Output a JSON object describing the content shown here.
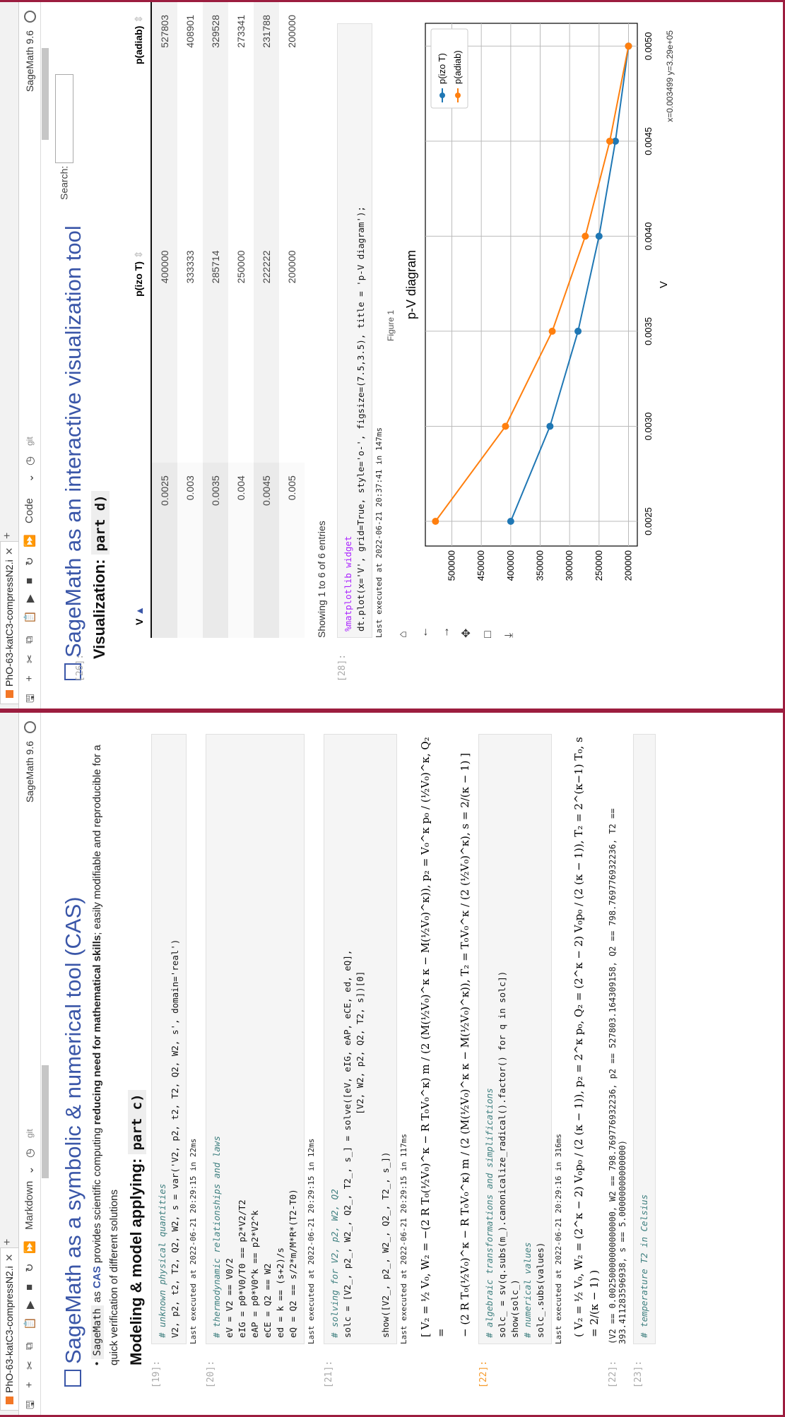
{
  "left": {
    "tab": "PhO-63-katC3-compressN2.i",
    "cell_type": "Markdown",
    "git": "git",
    "kernel": "SageMath 9.6",
    "title": "SageMath as a symbolic & numerical tool (CAS)",
    "bullet_parts": [
      "SageMath",
      " as ",
      "CAS",
      " provides scientific computing ",
      "reducing need for mathematical skills",
      "; easily modifiable and reproducible for a quick verification of different solutions"
    ],
    "subheading": "Modeling & model applying:",
    "subheading_code": "part c)",
    "cells": [
      {
        "prompt": "[19]:",
        "lines": [
          "# unknown physical quantities",
          "V2, p2, t2, T2, Q2, W2, s = var('V2, p2, t2, T2, Q2, W2, s', domain='real')"
        ],
        "exec": "Last executed at 2022-06-21 20:29:15 in 22ms"
      },
      {
        "prompt": "[20]:",
        "lines": [
          "# thermodynamic relationships and laws",
          "eV = V2 == V0/2",
          "eIG = p0*V0/T0 == p2*V2/T2",
          "eAP = p0*V0^k == p2*V2^k",
          "eCE = Q2 == W2",
          "ed = k == (s+2)/s",
          "eQ = Q2 == s/2*m/M*R*(T2-T0)"
        ],
        "exec": "Last executed at 2022-06-21 20:29:15 in 12ms"
      },
      {
        "prompt": "[21]:",
        "lines": [
          "# solving for V2, p2, W2, Q2",
          "solc = [V2_, p2_, W2_, Q2_, T2_, s_] = solve([eV, eIG, eAP, eCE, ed, eQ],",
          "                                          [V2, W2, p2, Q2, T2, s])[0]",
          "",
          "show([V2_, p2_, W2_, Q2_, T2_, s_])"
        ],
        "exec": "Last executed at 2022-06-21 20:29:15 in 117ms"
      },
      {
        "prompt": "[22]:",
        "lines": [
          "# algebraic transformations and simplifications",
          "solc_ = sv(q.subs(m_).canonicalize_radical().factor() for q in solc])",
          "show(solc_)",
          "# numerical values",
          "solc_.subs(values)"
        ],
        "exec": "Last executed at 2022-06-21 20:29:16 in 316ms"
      }
    ],
    "math21_a": "[ V₂ = ½ V₀, W₂ = −(2 R T₀(½V₀)^κ − R T₀V₀^κ) m / (2 (M(½V₀)^κ κ − M(½V₀)^κ)), p₂ = V₀^κ p₀ / (½V₀)^κ, Q₂ =",
    "math21_b": "− (2 R T₀(½V₀)^κ − R T₀V₀^κ) m / (2 (M(½V₀)^κ κ − M(½V₀)^κ)), T₂ = T₀V₀^κ / (2 (½V₀)^κ), s = 2/(κ − 1) ]",
    "math22": "( V₂ = ½ V₀, W₂ = (2^κ − 2) V₀p₀ / (2 (κ − 1)), p₂ = 2^κ p₀, Q₂ = (2^κ − 2) V₀p₀ / (2 (κ − 1)), T₂ = 2^(κ−1) T₀, s = 2/(κ − 1) )",
    "out22_prompt": "[22]:",
    "out22": "(V2 == 0.00250000000000000, W2 == 798.769776932236, p2 == 527803.164309158, Q2 == 798.769776932236, T2 == 393.411283596938, s == 5.00000000000000)",
    "cell23_prompt": "[23]:",
    "cell23": "# temperature T2 in Celsius"
  },
  "right": {
    "tab": "PhO-63-katC3-compressN2.i",
    "cell_type": "Code",
    "git": "git",
    "kernel": "SageMath 9.6",
    "prompt26": "[26]:",
    "title": "SageMath as an interactive visualization tool",
    "subheading": "Visualization:",
    "subheading_code": "part d)",
    "search_label": "Search:",
    "table": {
      "headers": [
        "V",
        "p(izo T)",
        "p(adiab)"
      ],
      "rows": [
        [
          "0.0025",
          "400000",
          "527803"
        ],
        [
          "0.003",
          "333333",
          "408901"
        ],
        [
          "0.0035",
          "285714",
          "329528"
        ],
        [
          "0.004",
          "250000",
          "273341"
        ],
        [
          "0.0045",
          "222222",
          "231788"
        ],
        [
          "0.005",
          "200000",
          "200000"
        ]
      ],
      "info": "Showing 1 to 6 of 6 entries"
    },
    "prompt28": "[28]:",
    "cell28_lines": [
      "%matplotlib widget",
      "dt.plot(x='V', grid=True, style='o-', figsize=(7.5,3.5), title = 'p-V diagram');"
    ],
    "exec28": "Last executed at 2022-06-21 20:37:41 in 147ms",
    "figure_label": "Figure 1",
    "coords": "x=0.003499 y=3.29e+05"
  },
  "chart_data": {
    "type": "line",
    "title": "p-V diagram",
    "xlabel": "V",
    "ylabel": "",
    "x": [
      0.0025,
      0.003,
      0.0035,
      0.004,
      0.0045,
      0.005
    ],
    "xticks": [
      "0.0025",
      "0.0030",
      "0.0035",
      "0.0040",
      "0.0045",
      "0.0050"
    ],
    "yticks": [
      "200000",
      "250000",
      "300000",
      "350000",
      "400000",
      "450000",
      "500000"
    ],
    "xlim": [
      0.00237,
      0.00512
    ],
    "ylim": [
      185000,
      545000
    ],
    "grid": true,
    "legend": "top-right",
    "series": [
      {
        "name": "p(izo T)",
        "color": "#1f77b4",
        "values": [
          400000,
          333333,
          285714,
          250000,
          222222,
          200000
        ]
      },
      {
        "name": "p(adiab)",
        "color": "#ff7f0e",
        "values": [
          527803,
          408901,
          329528,
          273341,
          231788,
          200000
        ]
      }
    ]
  }
}
